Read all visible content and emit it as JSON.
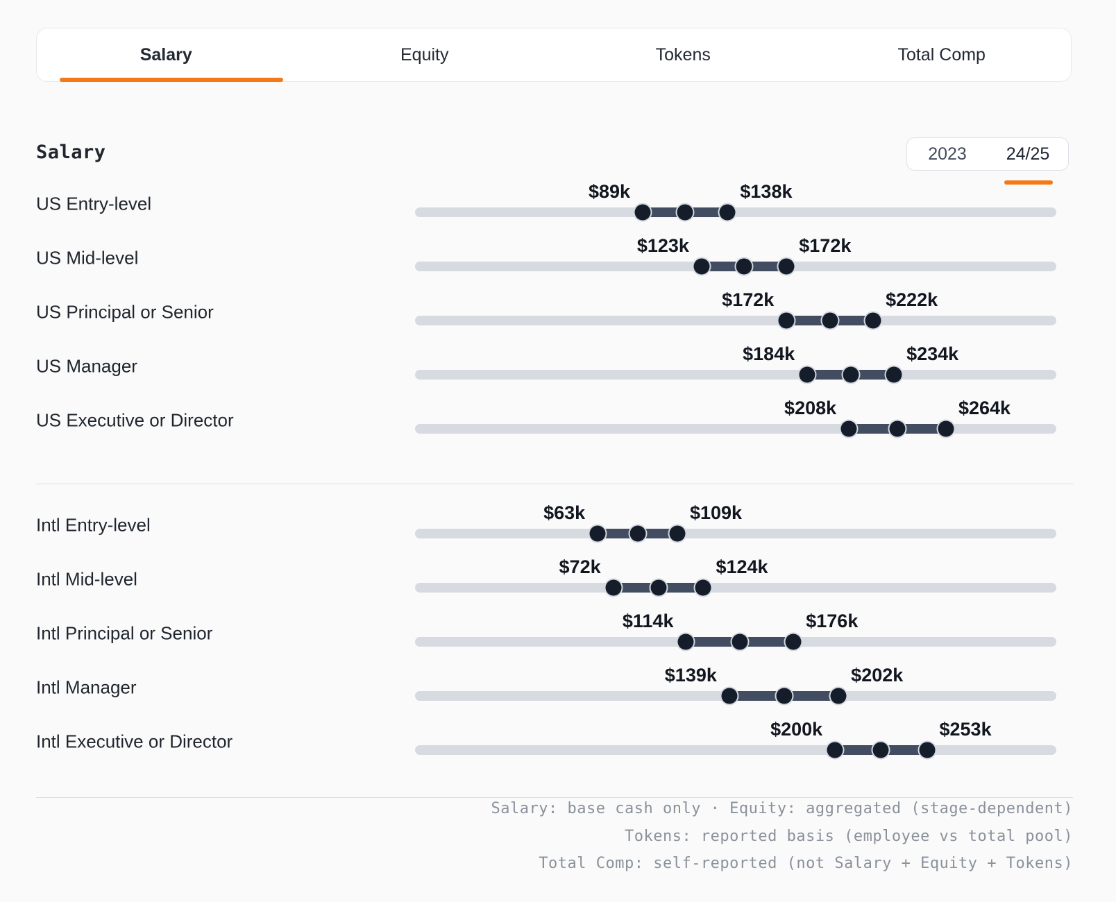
{
  "colors": {
    "accent": "#f47816",
    "track": "#d7dbe1",
    "range": "#424d61",
    "dot": "#151c2a",
    "dot_ring": "#d3d8e0",
    "background": "#fafafa"
  },
  "tabs": {
    "items": [
      {
        "label": "Salary",
        "active": true
      },
      {
        "label": "Equity",
        "active": false
      },
      {
        "label": "Tokens",
        "active": false
      },
      {
        "label": "Total Comp",
        "active": false
      }
    ]
  },
  "section": {
    "title": "Salary"
  },
  "year_toggle": {
    "options": [
      {
        "label": "2023",
        "active": false
      },
      {
        "label": "24/25",
        "active": true
      }
    ]
  },
  "chart_data": {
    "type": "bar",
    "subtype": "horizontal-range-slider",
    "title": "Salary",
    "unit": "USD thousands (base salary)",
    "axis": {
      "min": -42.4,
      "max": 327.7
    },
    "legend_position": "none",
    "grid": false,
    "groups": [
      {
        "name": "US",
        "rows": [
          {
            "label": "US Entry-level",
            "min": 89,
            "max": 138,
            "min_label": "$89k",
            "max_label": "$138k"
          },
          {
            "label": "US Mid-level",
            "min": 123,
            "max": 172,
            "min_label": "$123k",
            "max_label": "$172k"
          },
          {
            "label": "US Principal or Senior",
            "min": 172,
            "max": 222,
            "min_label": "$172k",
            "max_label": "$222k"
          },
          {
            "label": "US Manager",
            "min": 184,
            "max": 234,
            "min_label": "$184k",
            "max_label": "$234k"
          },
          {
            "label": "US Executive or Director",
            "min": 208,
            "max": 264,
            "min_label": "$208k",
            "max_label": "$264k"
          }
        ]
      },
      {
        "name": "Intl",
        "rows": [
          {
            "label": "Intl Entry-level",
            "min": 63,
            "max": 109,
            "min_label": "$63k",
            "max_label": "$109k"
          },
          {
            "label": "Intl Mid-level",
            "min": 72,
            "max": 124,
            "min_label": "$72k",
            "max_label": "$124k"
          },
          {
            "label": "Intl Principal or Senior",
            "min": 114,
            "max": 176,
            "min_label": "$114k",
            "max_label": "$176k"
          },
          {
            "label": "Intl Manager",
            "min": 139,
            "max": 202,
            "min_label": "$139k",
            "max_label": "$202k"
          },
          {
            "label": "Intl Executive or Director",
            "min": 200,
            "max": 253,
            "min_label": "$200k",
            "max_label": "$253k"
          }
        ]
      }
    ]
  },
  "footer": {
    "lines": [
      "Salary: base cash only · Equity: aggregated (stage-dependent)",
      "Tokens: reported basis (employee vs total pool)",
      "Total Comp: self-reported (not Salary + Equity + Tokens)"
    ]
  }
}
